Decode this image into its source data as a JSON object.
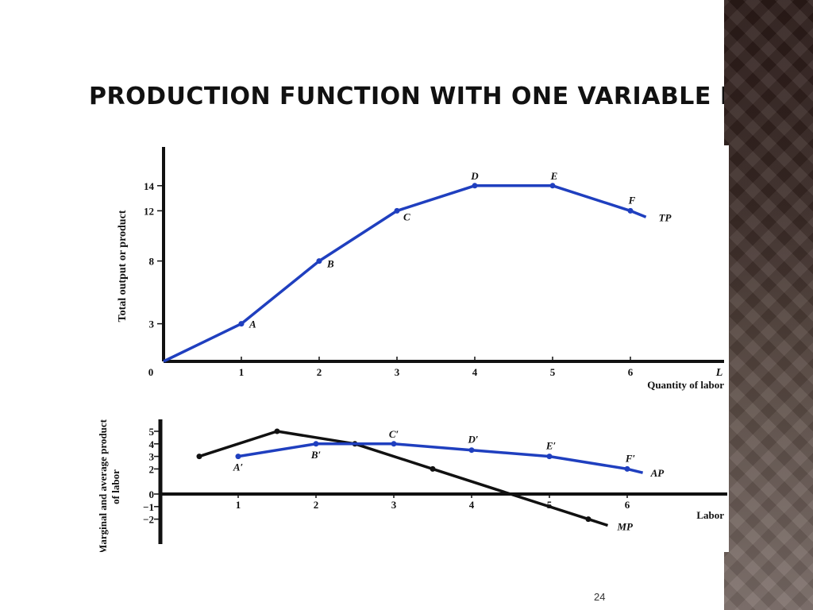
{
  "slide": {
    "title": "PRODUCTION FUNCTION WITH ONE VARIABLE INPUT",
    "page_number": "24"
  },
  "colors": {
    "tp_line": "#1f3fbf",
    "ap_line": "#1f3fbf",
    "mp_line": "#111111",
    "axis": "#111111"
  },
  "chart_data": [
    {
      "type": "line",
      "ylabel": "Total output or product",
      "xlabel": "Quantity of labor",
      "x_axis_symbol": "L",
      "x_ticks": [
        "1",
        "2",
        "3",
        "4",
        "5",
        "6"
      ],
      "y_ticks": [
        "3",
        "8",
        "12",
        "14"
      ],
      "origin_label": "0",
      "xlim": [
        0,
        7.2
      ],
      "ylim": [
        0,
        17
      ],
      "series": [
        {
          "name": "TP",
          "x": [
            0,
            1,
            2,
            3,
            4,
            5,
            6,
            6.2
          ],
          "y": [
            0,
            3,
            8,
            12,
            14,
            14,
            12,
            11.5
          ],
          "point_labels": [
            "",
            "A",
            "B",
            "C",
            "D",
            "E",
            "F",
            ""
          ]
        }
      ]
    },
    {
      "type": "line",
      "ylabel": "Marginal and average product of labor",
      "xlabel": "Labor",
      "x_ticks": [
        "1",
        "2",
        "3",
        "4",
        "5",
        "6"
      ],
      "y_ticks": [
        "5",
        "4",
        "3",
        "2",
        "0",
        "−1",
        "−2"
      ],
      "xlim": [
        0,
        7.2
      ],
      "ylim": [
        -3.5,
        6
      ],
      "series": [
        {
          "name": "AP",
          "x": [
            1,
            2,
            3,
            4,
            5,
            6,
            6.2
          ],
          "y": [
            3,
            4,
            4,
            3.5,
            3,
            2,
            1.7
          ],
          "point_labels": [
            "A′",
            "B′",
            "C′",
            "D′",
            "E′",
            "F′",
            ""
          ]
        },
        {
          "name": "MP",
          "x": [
            0.5,
            1.5,
            2.5,
            3.5,
            5.5,
            5.75
          ],
          "y": [
            3,
            5,
            4,
            2,
            -2,
            -2.5
          ],
          "point_labels": [
            "",
            "",
            "",
            "",
            "",
            ""
          ]
        }
      ]
    }
  ]
}
